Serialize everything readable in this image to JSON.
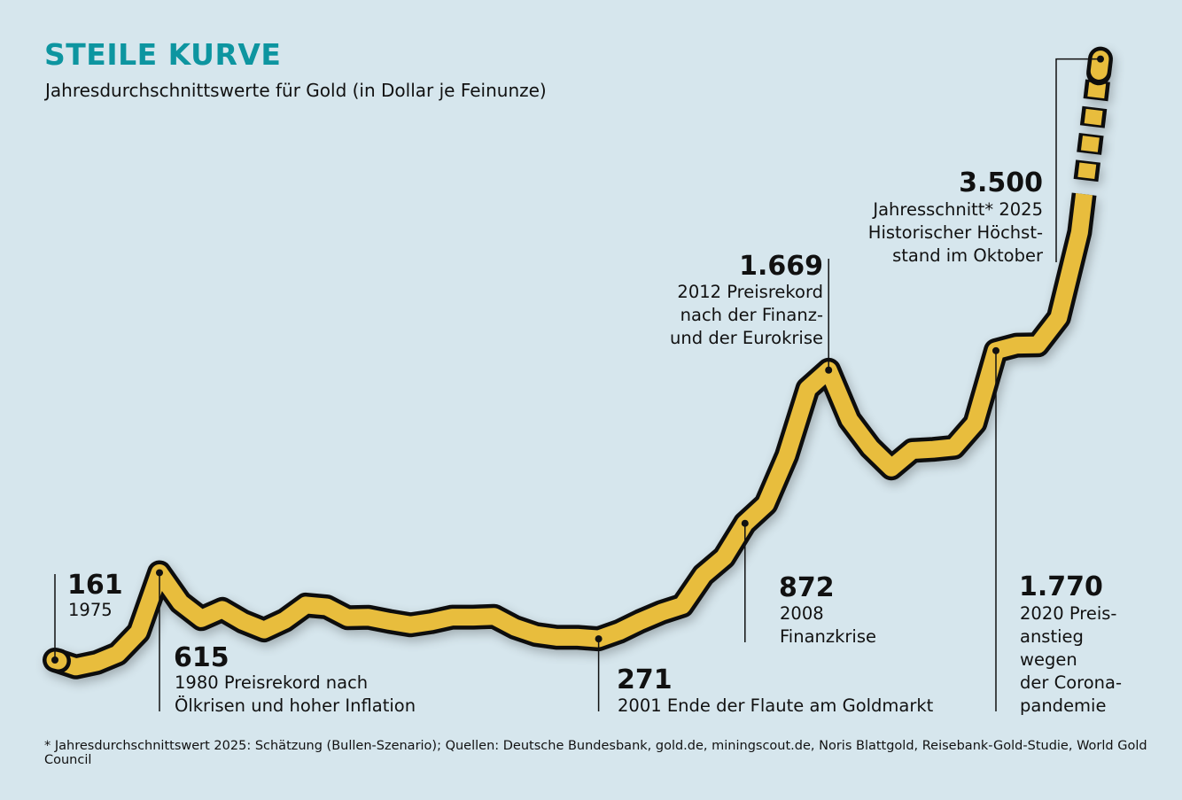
{
  "chart_data": {
    "type": "line",
    "title": "STEILE KURVE",
    "subtitle": "Jahresdurchschnittswerte für Gold (in Dollar je Feinunze)",
    "xlabel": "",
    "ylabel": "Dollar je Feinunze",
    "x": [
      1975,
      1976,
      1977,
      1978,
      1979,
      1980,
      1981,
      1982,
      1983,
      1984,
      1985,
      1986,
      1987,
      1988,
      1989,
      1990,
      1991,
      1992,
      1993,
      1994,
      1995,
      1996,
      1997,
      1998,
      1999,
      2000,
      2001,
      2002,
      2003,
      2004,
      2005,
      2006,
      2007,
      2008,
      2009,
      2010,
      2011,
      2012,
      2013,
      2014,
      2015,
      2016,
      2017,
      2018,
      2019,
      2020,
      2021,
      2022,
      2023,
      2024,
      2025
    ],
    "values": [
      161,
      125,
      148,
      193,
      306,
      615,
      460,
      376,
      424,
      361,
      317,
      368,
      447,
      437,
      381,
      383,
      362,
      344,
      360,
      384,
      384,
      388,
      331,
      294,
      279,
      279,
      271,
      310,
      363,
      409,
      444,
      603,
      695,
      872,
      972,
      1225,
      1572,
      1669,
      1411,
      1266,
      1160,
      1251,
      1257,
      1268,
      1393,
      1770,
      1799,
      1800,
      1941,
      2386,
      3500
    ],
    "axis_break_above": 2400,
    "annotations": [
      {
        "year": 1975,
        "value_label": "161",
        "lines": [
          "1975"
        ]
      },
      {
        "year": 1980,
        "value_label": "615",
        "lines": [
          "1980 Preisrekord nach",
          "Ölkrisen und hoher Inflation"
        ]
      },
      {
        "year": 2001,
        "value_label": "271",
        "lines": [
          "2001 Ende der Flaute am Goldmarkt"
        ]
      },
      {
        "year": 2008,
        "value_label": "872",
        "lines": [
          "2008",
          "Finanzkrise"
        ]
      },
      {
        "year": 2012,
        "value_label": "1.669",
        "lines": [
          "2012 Preisrekord",
          "nach der Finanz-",
          "und der Eurokrise"
        ]
      },
      {
        "year": 2020,
        "value_label": "1.770",
        "lines": [
          "2020 Preis-",
          "anstieg",
          "wegen",
          "der Corona-",
          "pandemie"
        ]
      },
      {
        "year": 2025,
        "value_label": "3.500",
        "lines": [
          "Jahresschnitt* 2025",
          "Historischer Höchst-",
          "stand im Oktober"
        ]
      }
    ],
    "line_color": "#e8bd3c",
    "outline_color": "#111111"
  },
  "footnote": "* Jahresdurchschnittswert 2025: Schätzung (Bullen-Szenario); Quellen: Deutsche Bundesbank, gold.de, miningscout.de, Noris Blattgold, Reisebank-Gold-Studie, World Gold Council"
}
